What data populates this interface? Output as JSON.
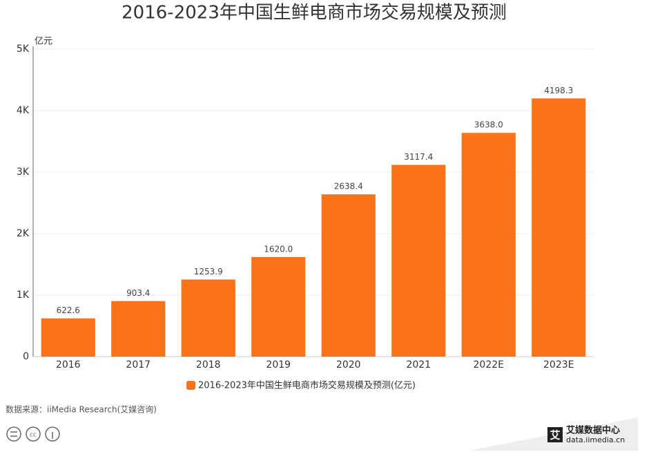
{
  "chart_data": {
    "type": "bar",
    "title": "2016-2023年中国生鲜电商市场交易规模及预测",
    "y_unit": "亿元",
    "categories": [
      "2016",
      "2017",
      "2018",
      "2019",
      "2020",
      "2021",
      "2022E",
      "2023E"
    ],
    "series": [
      {
        "name": "2016-2023年中国生鲜电商市场交易规模及预测(亿元)",
        "color": "#fa7319",
        "values": [
          622.6,
          903.4,
          1253.9,
          1620.0,
          2638.4,
          3117.4,
          3638.0,
          4198.3
        ],
        "value_labels": [
          "622.6",
          "903.4",
          "1253.9",
          "1620.0",
          "2638.4",
          "3117.4",
          "3638.0",
          "4198.3"
        ]
      }
    ],
    "ylim": [
      0,
      5000
    ],
    "yticks": [
      0,
      {
        "value": 1000,
        "label": "1K"
      },
      {
        "value": 2000,
        "label": "2K"
      },
      {
        "value": 3000,
        "label": "3K"
      },
      {
        "value": 4000,
        "label": "4K"
      },
      {
        "value": 5000,
        "label": "5K"
      }
    ],
    "grid": true,
    "legend": "bottom",
    "source": "数据来源：iiMedia Research(艾媒咨询)",
    "logo": {
      "icon": "艾",
      "name": "艾媒数据中心",
      "url": "data.iimedia.cn"
    }
  }
}
